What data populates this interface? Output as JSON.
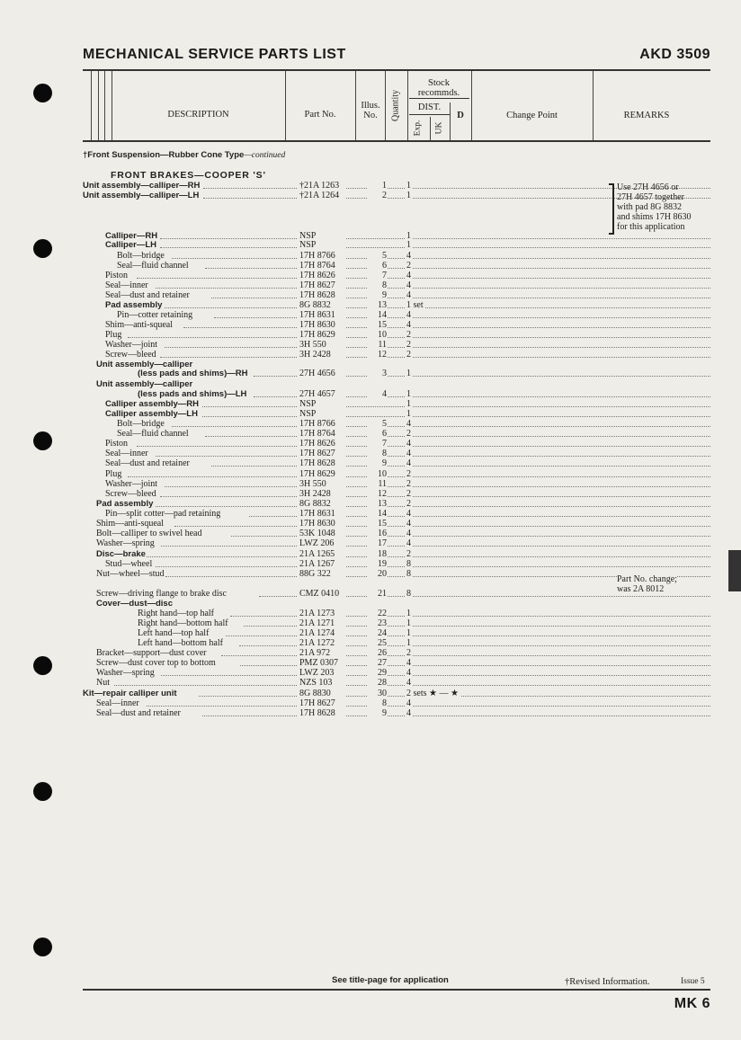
{
  "header": {
    "title": "MECHANICAL SERVICE PARTS LIST",
    "code": "AKD 3509"
  },
  "columns": {
    "description": "DESCRIPTION",
    "part_no": "Part No.",
    "illus_no": "Illus. No.",
    "quantity": "Quantity",
    "stock": "Stock recommds.",
    "dist": "DIST.",
    "exp": "Exp.",
    "uk": "UK",
    "d": "D",
    "change_point": "Change Point",
    "remarks": "REMARKS"
  },
  "section": {
    "heading": "†Front Suspension—Rubber Cone Type",
    "heading_suffix": "—continued",
    "subheading": "FRONT BRAKES—COOPER 'S'"
  },
  "rows": [
    {
      "desc": "Unit assembly—calliper—RH",
      "bold": true,
      "level": 0,
      "part": "†21A 1263",
      "illus": "1",
      "qty": "1"
    },
    {
      "desc": "Unit assembly—calliper—LH",
      "bold": true,
      "level": 0,
      "part": "†21A 1264",
      "illus": "2",
      "qty": "1"
    },
    {
      "desc": "Calliper—RH",
      "bold": true,
      "level": 2,
      "part": "NSP",
      "illus": "",
      "qty": "1"
    },
    {
      "desc": "Calliper—LH",
      "bold": true,
      "level": 2,
      "part": "NSP",
      "illus": "",
      "qty": "1"
    },
    {
      "desc": "Bolt—bridge",
      "level": 3,
      "part": "17H 8766",
      "illus": "5",
      "qty": "4"
    },
    {
      "desc": "Seal—fluid channel",
      "level": 3,
      "part": "17H 8764",
      "illus": "6",
      "qty": "2"
    },
    {
      "desc": "Piston",
      "level": 2,
      "part": "17H 8626",
      "illus": "7",
      "qty": "4"
    },
    {
      "desc": "Seal—inner",
      "level": 2,
      "part": "17H 8627",
      "illus": "8",
      "qty": "4"
    },
    {
      "desc": "Seal—dust and retainer",
      "level": 2,
      "part": "17H 8628",
      "illus": "9",
      "qty": "4"
    },
    {
      "desc": "Pad assembly",
      "bold": true,
      "level": 2,
      "part": "8G 8832",
      "illus": "13",
      "qty": "1 set"
    },
    {
      "desc": "Pin—cotter retaining",
      "level": 3,
      "part": "17H 8631",
      "illus": "14",
      "qty": "4"
    },
    {
      "desc": "Shim—anti-squeal",
      "level": 2,
      "part": "17H 8630",
      "illus": "15",
      "qty": "4"
    },
    {
      "desc": "Plug",
      "level": 2,
      "part": "17H 8629",
      "illus": "10",
      "qty": "2"
    },
    {
      "desc": "Washer—joint",
      "level": 2,
      "part": "3H 550",
      "illus": "11",
      "qty": "2"
    },
    {
      "desc": "Screw—bleed",
      "level": 2,
      "part": "3H 2428",
      "illus": "12",
      "qty": "2"
    },
    {
      "desc": "Unit assembly—calliper",
      "bold": true,
      "level": 1,
      "part": "",
      "illus": "",
      "qty": ""
    },
    {
      "desc": "(less pads and shims)—RH",
      "bold": true,
      "level": 4,
      "part": "27H 4656",
      "illus": "3",
      "qty": "1"
    },
    {
      "desc": "Unit assembly—calliper",
      "bold": true,
      "level": 1,
      "part": "",
      "illus": "",
      "qty": ""
    },
    {
      "desc": "(less pads and shims)—LH",
      "bold": true,
      "level": 4,
      "part": "27H 4657",
      "illus": "4",
      "qty": "1"
    },
    {
      "desc": "Calliper assembly—RH",
      "bold": true,
      "level": 2,
      "part": "NSP",
      "illus": "",
      "qty": "1"
    },
    {
      "desc": "Calliper assembly—LH",
      "bold": true,
      "level": 2,
      "part": "NSP",
      "illus": "",
      "qty": "1"
    },
    {
      "desc": "Bolt—bridge",
      "level": 3,
      "part": "17H 8766",
      "illus": "5",
      "qty": "4"
    },
    {
      "desc": "Seal—fluid channel",
      "level": 3,
      "part": "17H 8764",
      "illus": "6",
      "qty": "2"
    },
    {
      "desc": "Piston",
      "level": 2,
      "part": "17H 8626",
      "illus": "7",
      "qty": "4"
    },
    {
      "desc": "Seal—inner",
      "level": 2,
      "part": "17H 8627",
      "illus": "8",
      "qty": "4"
    },
    {
      "desc": "Seal—dust and retainer",
      "level": 2,
      "part": "17H 8628",
      "illus": "9",
      "qty": "4"
    },
    {
      "desc": "Plug",
      "level": 2,
      "part": "17H 8629",
      "illus": "10",
      "qty": "2"
    },
    {
      "desc": "Washer—joint",
      "level": 2,
      "part": "3H 550",
      "illus": "11",
      "qty": "2"
    },
    {
      "desc": "Screw—bleed",
      "level": 2,
      "part": "3H 2428",
      "illus": "12",
      "qty": "2"
    },
    {
      "desc": "Pad assembly",
      "bold": true,
      "level": 1,
      "part": "8G 8832",
      "illus": "13",
      "qty": "2"
    },
    {
      "desc": "Pin—split cotter—pad retaining",
      "level": 2,
      "part": "17H 8631",
      "illus": "14",
      "qty": "4"
    },
    {
      "desc": "Shim—anti-squeal",
      "level": 1,
      "part": "17H 8630",
      "illus": "15",
      "qty": "4"
    },
    {
      "desc": "Bolt—calliper to swivel head",
      "level": 1,
      "part": "53K 1048",
      "illus": "16",
      "qty": "4"
    },
    {
      "desc": "Washer—spring",
      "level": 1,
      "part": "LWZ 206",
      "illus": "17",
      "qty": "4"
    },
    {
      "desc": "Disc—brake",
      "bold": true,
      "level": 1,
      "part": "21A 1265",
      "illus": "18",
      "qty": "2"
    },
    {
      "desc": "Stud—wheel",
      "level": 2,
      "part": "21A 1267",
      "illus": "19",
      "qty": "8"
    },
    {
      "desc": "Nut—wheel—stud",
      "level": 1,
      "part": "88G 322",
      "illus": "20",
      "qty": "8",
      "remark": "Part No. change;"
    },
    {
      "desc": "Screw—driving flange to brake disc",
      "level": 1,
      "part": "CMZ 0410",
      "illus": "21",
      "qty": "8",
      "remark": "was 2A 8012"
    },
    {
      "desc": "Cover—dust—disc",
      "bold": true,
      "level": 1,
      "part": "",
      "illus": "",
      "qty": ""
    },
    {
      "desc": "Right hand—top half",
      "level": 4,
      "part": "21A 1273",
      "illus": "22",
      "qty": "1"
    },
    {
      "desc": "Right hand—bottom half",
      "level": 4,
      "part": "21A 1271",
      "illus": "23",
      "qty": "1"
    },
    {
      "desc": "Left hand—top half",
      "level": 4,
      "part": "21A 1274",
      "illus": "24",
      "qty": "1"
    },
    {
      "desc": "Left hand—bottom half",
      "level": 4,
      "part": "21A 1272",
      "illus": "25",
      "qty": "1"
    },
    {
      "desc": "Bracket—support—dust cover",
      "level": 1,
      "part": "21A 972",
      "illus": "26",
      "qty": "2"
    },
    {
      "desc": "Screw—dust cover top to bottom",
      "level": 1,
      "part": "PMZ 0307",
      "illus": "27",
      "qty": "4"
    },
    {
      "desc": "Washer—spring",
      "level": 1,
      "part": "LWZ 203",
      "illus": "29",
      "qty": "4"
    },
    {
      "desc": "Nut",
      "level": 1,
      "part": "NZS 103",
      "illus": "28",
      "qty": "4"
    },
    {
      "desc": "Kit—repair calliper unit",
      "bold": true,
      "level": 0,
      "part": "8G 8830",
      "illus": "30",
      "qty": "2 sets ★ — ★"
    },
    {
      "desc": "Seal—inner",
      "level": 1,
      "part": "17H 8627",
      "illus": "8",
      "qty": "4"
    },
    {
      "desc": "Seal—dust and retainer",
      "level": 1,
      "part": "17H 8628",
      "illus": "9",
      "qty": "4"
    }
  ],
  "remarks_block": [
    "Use 27H 4656 or",
    "27H 4657 together",
    "with pad 8G 8832",
    "and shims 17H 8630",
    "for this application"
  ],
  "footer": {
    "application": "See title-page for application",
    "revised": "†Revised Information.",
    "issue": "Issue 5",
    "page": "MK 6"
  }
}
